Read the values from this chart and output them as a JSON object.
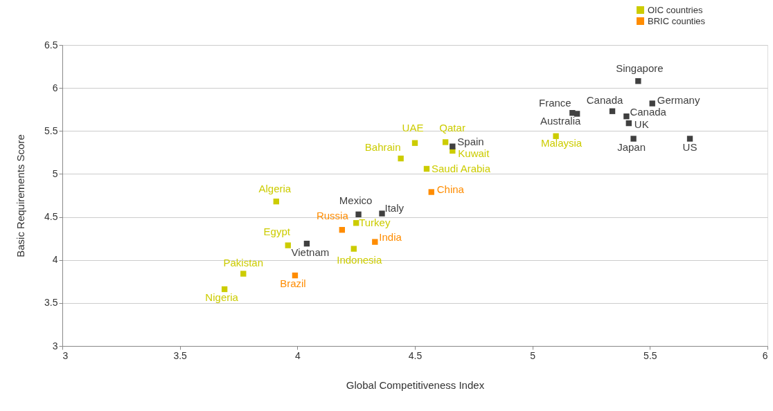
{
  "chart_data": {
    "type": "scatter",
    "xlabel": "Global Competitiveness Index",
    "ylabel": "Basic Requirements Score",
    "xlim": [
      3,
      6
    ],
    "xticks": [
      3,
      3.5,
      4,
      4.5,
      5,
      5.5,
      6
    ],
    "ylim": [
      3,
      6.5
    ],
    "yticks": [
      3,
      3.5,
      4,
      4.5,
      5,
      5.5,
      6,
      6.5
    ],
    "grid": "y",
    "legend": "top right",
    "marker": "square",
    "series": [
      {
        "name": "OIC countries",
        "color": "#cccc00",
        "x": [
          3.69,
          3.77,
          3.91,
          3.96,
          4.25,
          4.24,
          4.55,
          4.44,
          4.5,
          4.63,
          4.66,
          5.1
        ],
        "values": [
          3.66,
          3.84,
          4.68,
          4.17,
          4.43,
          4.13,
          5.06,
          5.18,
          5.36,
          5.37,
          5.27,
          5.44
        ],
        "value_labels": [
          "Nigeria",
          "Pakistan",
          "Algeria",
          "Egypt",
          "Turkey",
          "Indonesia",
          "Saudi Arabia",
          "Bahrain",
          "UAE",
          "Qatar",
          "Kuwait",
          "Malaysia"
        ]
      },
      {
        "name": "BRIC counties",
        "color": "#ff8c00",
        "x": [
          3.99,
          4.19,
          4.33,
          4.57
        ],
        "values": [
          3.82,
          4.35,
          4.21,
          4.79
        ],
        "value_labels": [
          "Brazil",
          "Russia",
          "India",
          "China"
        ]
      },
      {
        "color": "#404040",
        "x": [
          4.04,
          4.26,
          4.36,
          4.66,
          5.17,
          5.19,
          5.34,
          5.4,
          5.41,
          5.51,
          5.45,
          5.43,
          5.67
        ],
        "values": [
          4.19,
          4.53,
          4.54,
          5.32,
          5.71,
          5.7,
          5.73,
          5.67,
          5.59,
          5.82,
          6.08,
          5.41,
          5.41
        ],
        "value_labels": [
          "Vietnam",
          "Mexico",
          "Italy",
          "Spain",
          "France",
          "Australia",
          "Canada",
          "Canada",
          "UK",
          "Germany",
          "Singapore",
          "Japan",
          "US"
        ]
      }
    ]
  }
}
